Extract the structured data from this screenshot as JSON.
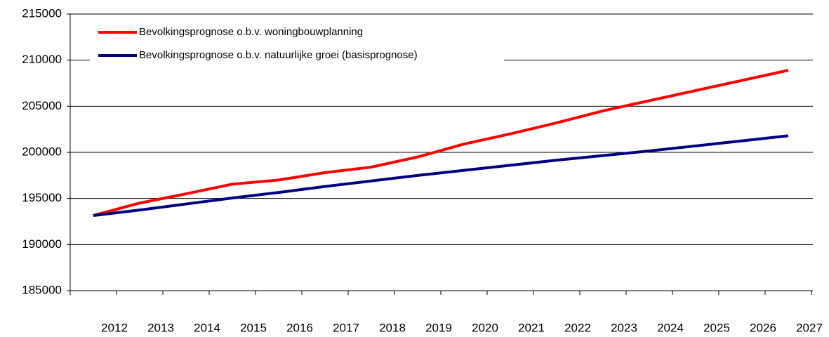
{
  "chart_data": {
    "type": "line",
    "categories": [
      "2012",
      "2013",
      "2014",
      "2015",
      "2016",
      "2017",
      "2018",
      "2019",
      "2020",
      "2021",
      "2022",
      "2023",
      "2024",
      "2025",
      "2026",
      "2027"
    ],
    "series": [
      {
        "name": "Bevolkingsprognose o.b.v. woningbouwplanning",
        "color": "#ff0000",
        "values": [
          193150,
          194500,
          195500,
          196550,
          197000,
          197800,
          198400,
          199500,
          200900,
          202000,
          203200,
          204500,
          205600,
          206700,
          207800,
          208900
        ]
      },
      {
        "name": "Bevolkingsprognose o.b.v. natuurlijke groei (basisprognose)",
        "color": "#000080",
        "values": [
          193150,
          193750,
          194400,
          195050,
          195650,
          196300,
          196900,
          197500,
          198050,
          198600,
          199150,
          199650,
          200150,
          200700,
          201250,
          201800
        ]
      }
    ],
    "ylim": [
      185000,
      215000
    ],
    "yticks": [
      185000,
      190000,
      195000,
      200000,
      205000,
      210000,
      215000
    ],
    "grid": true,
    "legend": "top-left"
  }
}
